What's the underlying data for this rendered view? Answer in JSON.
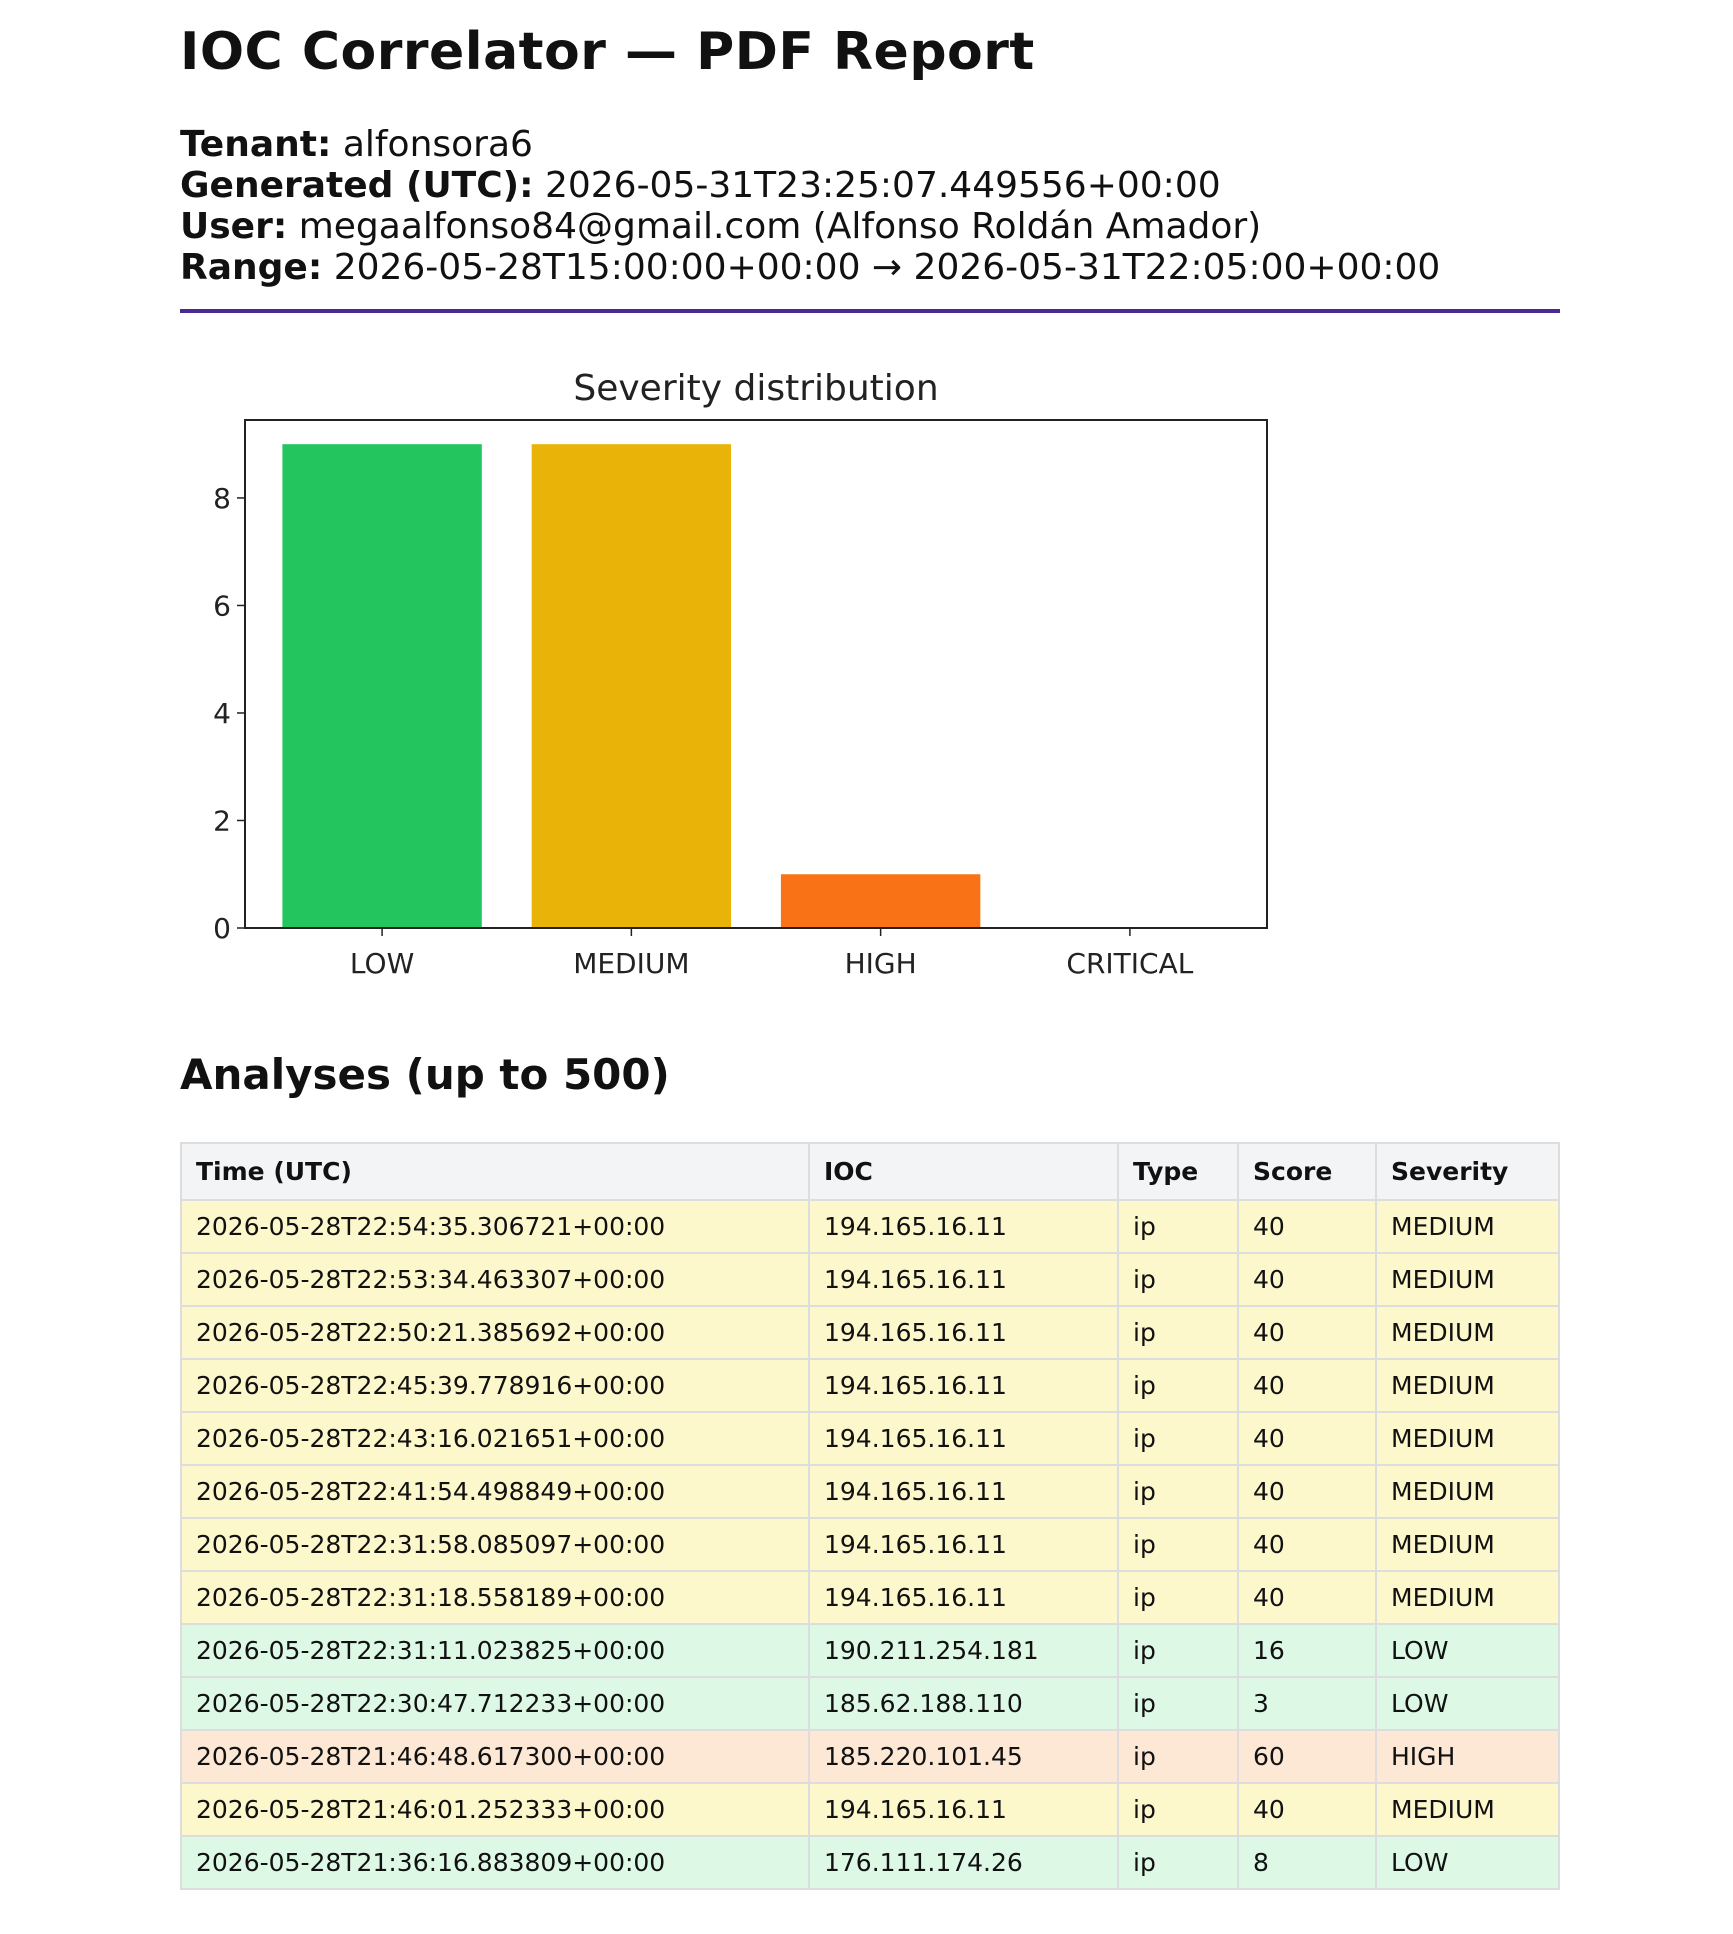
{
  "report": {
    "title": "IOC Correlator — PDF Report",
    "meta": [
      {
        "label": "Tenant:",
        "value": "alfonsora6"
      },
      {
        "label": "Generated (UTC):",
        "value": "2026-05-31T23:25:07.449556+00:00"
      },
      {
        "label": "User:",
        "value": "megaalfonso84@gmail.com (Alfonso Roldán Amador)"
      },
      {
        "label": "Range:",
        "value": "2026-05-28T15:00:00+00:00 → 2026-05-31T22:05:00+00:00"
      }
    ],
    "accent_color": "#4c2a94"
  },
  "chart_data": {
    "type": "bar",
    "title": "Severity distribution",
    "xlabel": "",
    "ylabel": "",
    "categories": [
      "LOW",
      "MEDIUM",
      "HIGH",
      "CRITICAL"
    ],
    "values": [
      9,
      9,
      1,
      0
    ],
    "colors": [
      "#22c55e",
      "#eab308",
      "#f97316",
      "#ef4444"
    ],
    "ylim": [
      0,
      9.45
    ],
    "yticks": [
      0,
      2,
      4,
      6,
      8
    ],
    "grid": false
  },
  "analyses": {
    "heading": "Analyses (up to 500)",
    "columns": [
      "Time (UTC)",
      "IOC",
      "Type",
      "Score",
      "Severity"
    ],
    "rows": [
      [
        "2026-05-28T22:54:35.306721+00:00",
        "194.165.16.11",
        "ip",
        "40",
        "MEDIUM"
      ],
      [
        "2026-05-28T22:53:34.463307+00:00",
        "194.165.16.11",
        "ip",
        "40",
        "MEDIUM"
      ],
      [
        "2026-05-28T22:50:21.385692+00:00",
        "194.165.16.11",
        "ip",
        "40",
        "MEDIUM"
      ],
      [
        "2026-05-28T22:45:39.778916+00:00",
        "194.165.16.11",
        "ip",
        "40",
        "MEDIUM"
      ],
      [
        "2026-05-28T22:43:16.021651+00:00",
        "194.165.16.11",
        "ip",
        "40",
        "MEDIUM"
      ],
      [
        "2026-05-28T22:41:54.498849+00:00",
        "194.165.16.11",
        "ip",
        "40",
        "MEDIUM"
      ],
      [
        "2026-05-28T22:31:58.085097+00:00",
        "194.165.16.11",
        "ip",
        "40",
        "MEDIUM"
      ],
      [
        "2026-05-28T22:31:18.558189+00:00",
        "194.165.16.11",
        "ip",
        "40",
        "MEDIUM"
      ],
      [
        "2026-05-28T22:31:11.023825+00:00",
        "190.211.254.181",
        "ip",
        "16",
        "LOW"
      ],
      [
        "2026-05-28T22:30:47.712233+00:00",
        "185.62.188.110",
        "ip",
        "3",
        "LOW"
      ],
      [
        "2026-05-28T21:46:48.617300+00:00",
        "185.220.101.45",
        "ip",
        "60",
        "HIGH"
      ],
      [
        "2026-05-28T21:46:01.252333+00:00",
        "194.165.16.11",
        "ip",
        "40",
        "MEDIUM"
      ],
      [
        "2026-05-28T21:36:16.883809+00:00",
        "176.111.174.26",
        "ip",
        "8",
        "LOW"
      ]
    ]
  }
}
